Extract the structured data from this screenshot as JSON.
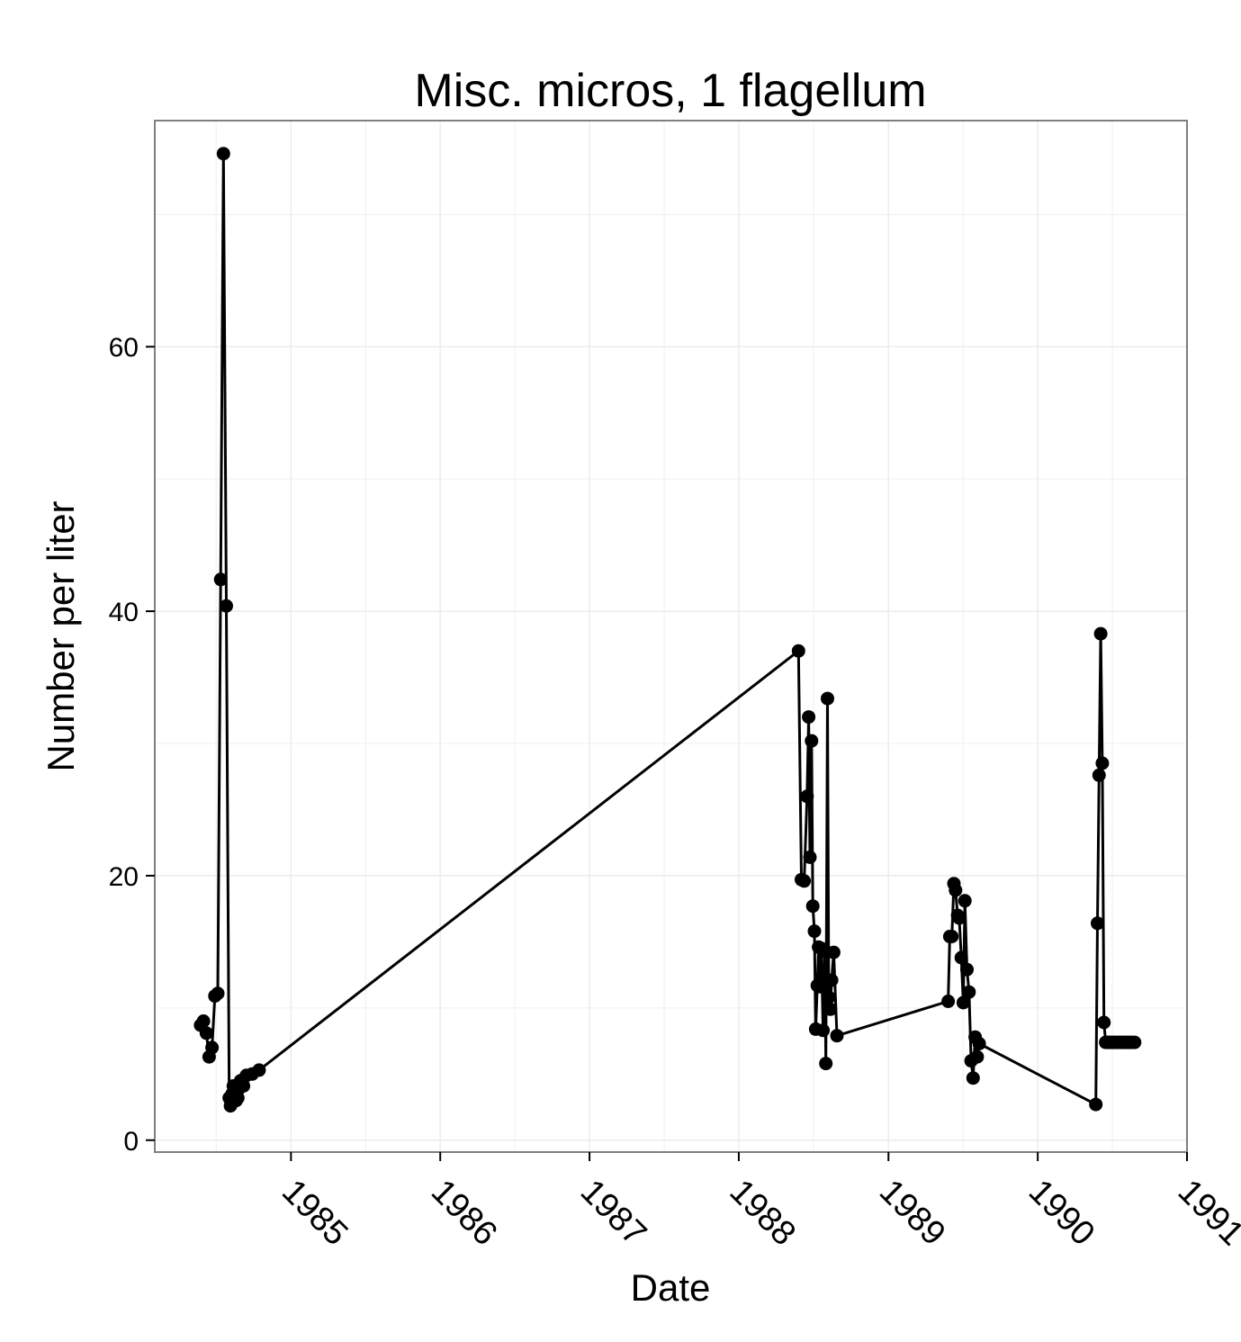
{
  "chart_data": {
    "type": "line",
    "title": "Misc. micros, 1 flagellum",
    "xlabel": "Date",
    "ylabel": "Number per liter",
    "x_tick_labels": [
      "1985",
      "1986",
      "1987",
      "1988",
      "1989",
      "1990",
      "1991"
    ],
    "y_tick_labels": [
      "0",
      "20",
      "40",
      "60"
    ],
    "ylim": [
      -0.9,
      77.1
    ],
    "xlim": [
      "1984-02-03",
      "1991-01-01"
    ],
    "grid": true,
    "colors": {
      "line": "#000000",
      "point": "#000000",
      "panel_border": "#7f7f7f",
      "grid": "#ececec"
    },
    "series": [
      {
        "x": [
          "1984-05-25",
          "1984-06-01",
          "1984-06-08",
          "1984-06-15",
          "1984-06-22",
          "1984-06-29",
          "1984-07-06",
          "1984-07-13",
          "1984-07-20",
          "1984-07-27",
          "1984-08-03",
          "1984-08-06",
          "1984-08-10",
          "1984-08-13",
          "1984-08-17",
          "1984-08-20",
          "1984-08-24",
          "1984-08-27",
          "1984-08-31",
          "1984-09-07",
          "1984-09-14",
          "1984-09-28",
          "1984-10-15",
          "1988-05-26",
          "1988-06-02",
          "1988-06-09",
          "1988-06-16",
          "1988-06-20",
          "1988-06-23",
          "1988-06-27",
          "1988-06-30",
          "1988-07-04",
          "1988-07-07",
          "1988-07-11",
          "1988-07-14",
          "1988-07-18",
          "1988-07-21",
          "1988-07-25",
          "1988-07-29",
          "1988-08-01",
          "1988-08-05",
          "1988-08-08",
          "1988-08-12",
          "1988-08-15",
          "1988-08-20",
          "1988-08-28",
          "1989-05-27",
          "1989-05-31",
          "1989-06-05",
          "1989-06-10",
          "1989-06-14",
          "1989-06-19",
          "1989-06-23",
          "1989-06-28",
          "1989-07-03",
          "1989-07-07",
          "1989-07-12",
          "1989-07-17",
          "1989-07-22",
          "1989-07-27",
          "1989-08-01",
          "1989-08-06",
          "1989-08-11",
          "1990-05-23",
          "1990-05-27",
          "1990-05-31",
          "1990-06-04",
          "1990-06-08",
          "1990-06-12",
          "1990-06-16",
          "1990-06-20",
          "1990-06-24",
          "1990-06-28",
          "1990-07-02",
          "1990-07-06",
          "1990-07-10",
          "1990-07-14",
          "1990-07-19",
          "1990-07-23",
          "1990-07-27",
          "1990-08-01",
          "1990-08-05",
          "1990-08-10",
          "1990-08-15",
          "1990-08-20",
          "1990-08-26"
        ],
        "y": [
          8.7,
          9.0,
          8.1,
          6.3,
          7.0,
          10.9,
          11.1,
          42.4,
          74.6,
          40.4,
          3.2,
          2.6,
          3.5,
          4.1,
          3.7,
          3.0,
          3.2,
          3.9,
          4.5,
          4.1,
          4.9,
          5.0,
          5.3,
          37.0,
          19.7,
          19.6,
          26.0,
          32.0,
          21.4,
          30.2,
          17.7,
          15.8,
          8.4,
          11.7,
          14.6,
          11.6,
          14.5,
          8.3,
          14.3,
          5.8,
          33.4,
          10.8,
          9.9,
          12.1,
          14.2,
          7.9,
          10.5,
          15.4,
          15.4,
          19.4,
          18.9,
          17.0,
          16.8,
          13.8,
          10.4,
          18.1,
          12.9,
          11.2,
          6.0,
          4.7,
          7.8,
          6.3,
          7.3,
          2.7,
          16.4,
          27.6,
          38.3,
          28.5,
          8.9,
          7.4,
          7.4,
          7.4,
          7.4,
          7.4,
          7.4,
          7.4,
          7.4,
          7.4,
          7.4,
          7.4,
          7.4,
          7.4,
          7.4,
          7.4,
          7.4,
          7.4
        ]
      }
    ]
  }
}
